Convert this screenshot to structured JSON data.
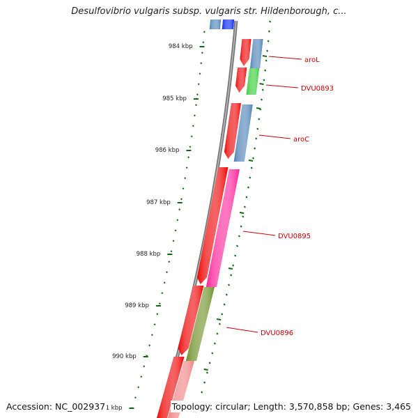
{
  "map": {
    "title": "Desulfovibrio vulgaris subsp. vulgaris str. Hildenborough, c...",
    "accession": "Accession: NC_002937",
    "topology": "Topology: circular; Length: 3,570,858 bp; Genes: 3,465"
  },
  "ticks": [
    {
      "label": "984 kbp"
    },
    {
      "label": "985 kbp"
    },
    {
      "label": "986 kbp"
    },
    {
      "label": "987 kbp"
    },
    {
      "label": "988 kbp"
    },
    {
      "label": "989 kbp"
    },
    {
      "label": "990 kbp"
    },
    {
      "label": "991 kbp"
    }
  ],
  "gene_labels": [
    {
      "text": "aroL"
    },
    {
      "text": "DVU0893"
    },
    {
      "text": "aroC"
    },
    {
      "text": "DVU0895"
    },
    {
      "text": "DVU0896"
    }
  ],
  "colors": {
    "forward_cds": "#ee0000",
    "steelblue": "#4a7fb5",
    "blue": "#0022ee",
    "green": "#33cc33",
    "magenta": "#ff2299",
    "olive": "#6b8e23",
    "salmon": "#f08080",
    "tick_green": "#116611",
    "backbone": "#777777",
    "label_red": "#cc0000"
  }
}
